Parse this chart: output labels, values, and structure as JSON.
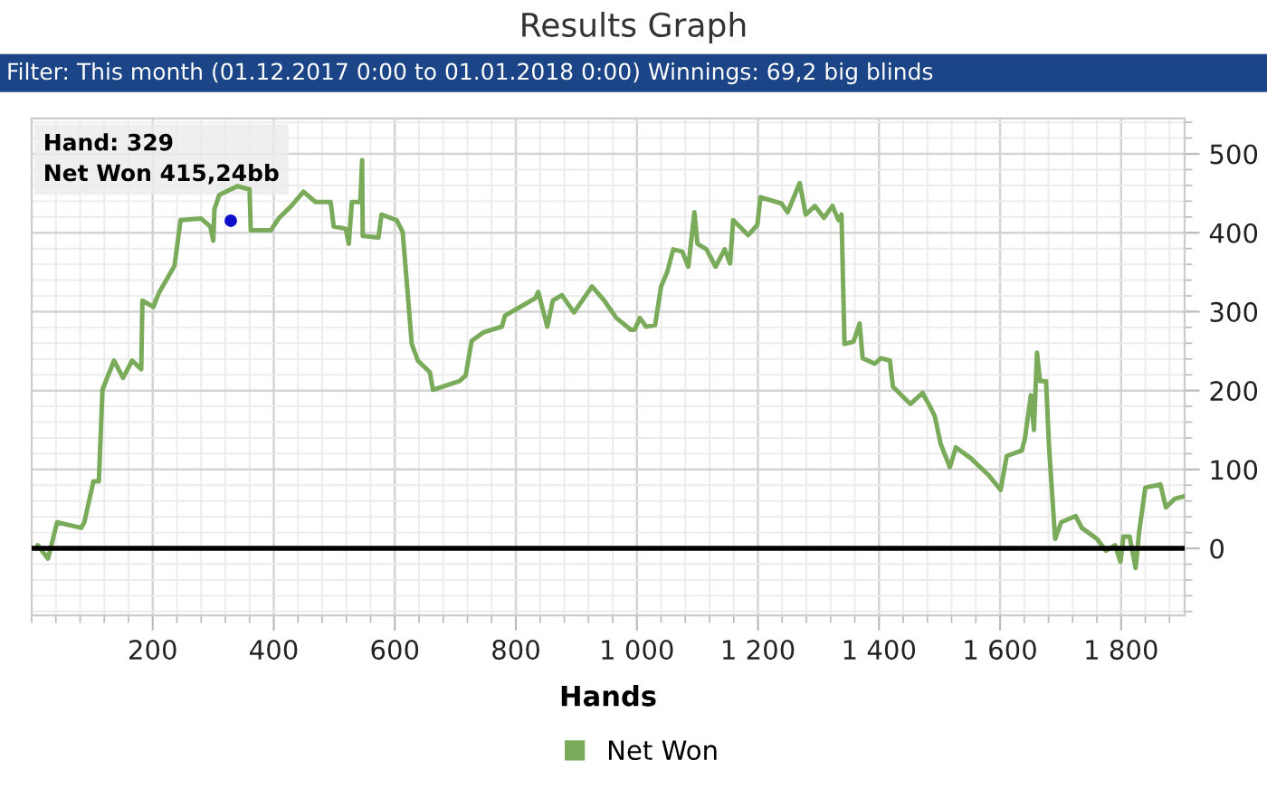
{
  "chart_data": {
    "type": "line",
    "title": "Results Graph",
    "subtitle": "Filter: This month (01.12.2017 0:00 to 01.01.2018 0:00) Winnings: 69,2 big blinds",
    "xlabel": "Hands",
    "series": [
      {
        "name": "Net Won",
        "color": "#7aab5a",
        "x": [
          7,
          10,
          27,
          42,
          82,
          87,
          102,
          111,
          117,
          136,
          151,
          166,
          181,
          183,
          201,
          211,
          236,
          246,
          280,
          295,
          300,
          302,
          310,
          340,
          360,
          362,
          395,
          409,
          429,
          449,
          469,
          494,
          499,
          519,
          524,
          529,
          543,
          546,
          547,
          573,
          578,
          603,
          613,
          618,
          628,
          638,
          658,
          663,
          707,
          717,
          727,
          747,
          777,
          782,
          807,
          832,
          837,
          852,
          861,
          876,
          896,
          926,
          946,
          966,
          990,
          996,
          1005,
          1015,
          1030,
          1040,
          1050,
          1060,
          1075,
          1085,
          1095,
          1100,
          1115,
          1130,
          1145,
          1154,
          1159,
          1184,
          1199,
          1204,
          1239,
          1249,
          1269,
          1279,
          1294,
          1309,
          1323,
          1333,
          1338,
          1343,
          1358,
          1368,
          1373,
          1393,
          1403,
          1418,
          1423,
          1437,
          1452,
          1472,
          1482,
          1492,
          1502,
          1517,
          1527,
          1552,
          1582,
          1601,
          1611,
          1636,
          1641,
          1651,
          1656,
          1661,
          1666,
          1676,
          1681,
          1691,
          1701,
          1725,
          1735,
          1760,
          1775,
          1790,
          1799,
          1804,
          1814,
          1824,
          1830,
          1840,
          1865,
          1874,
          1889,
          1904
        ],
        "values": [
          0,
          4,
          -13,
          33,
          26,
          33,
          85,
          85,
          201,
          238,
          216,
          238,
          227,
          314,
          306,
          325,
          358,
          416,
          418,
          408,
          390,
          430,
          448,
          459,
          455,
          403,
          403,
          419,
          434,
          452,
          439,
          439,
          408,
          405,
          386,
          439,
          439,
          492,
          396,
          394,
          423,
          416,
          401,
          354,
          259,
          238,
          223,
          201,
          212,
          219,
          263,
          274,
          281,
          295,
          306,
          317,
          325,
          281,
          314,
          321,
          299,
          332,
          314,
          292,
          277,
          277,
          292,
          281,
          283,
          332,
          350,
          379,
          376,
          357,
          426,
          386,
          379,
          357,
          379,
          361,
          416,
          397,
          410,
          445,
          437,
          426,
          463,
          423,
          434,
          419,
          434,
          416,
          423,
          259,
          262,
          285,
          241,
          234,
          241,
          238,
          205,
          194,
          183,
          197,
          183,
          168,
          132,
          103,
          128,
          114,
          92,
          74,
          117,
          124,
          139,
          194,
          150,
          248,
          212,
          212,
          128,
          12,
          33,
          41,
          26,
          12,
          -3,
          4,
          -17,
          15,
          15,
          -25,
          22,
          77,
          81,
          52,
          63,
          66
        ]
      }
    ],
    "xlim": [
      0,
      1905
    ],
    "xticks": [
      {
        "value": 200,
        "label": "200"
      },
      {
        "value": 400,
        "label": "400"
      },
      {
        "value": 600,
        "label": "600"
      },
      {
        "value": 800,
        "label": "800"
      },
      {
        "value": 1000,
        "label": "1 000"
      },
      {
        "value": 1200,
        "label": "1 200"
      },
      {
        "value": 1400,
        "label": "1 400"
      },
      {
        "value": 1600,
        "label": "1 600"
      },
      {
        "value": 1800,
        "label": "1 800"
      }
    ],
    "ylim": [
      -85,
      545
    ],
    "yticks": [
      0,
      100,
      200,
      300,
      400,
      500
    ],
    "ref_lines": [
      {
        "axis": "y",
        "value": 0,
        "color": "#000000"
      }
    ],
    "annotations": [
      {
        "text": "Hand: 329\nNet Won 415,24bb",
        "x": 329,
        "y": 415.24
      }
    ],
    "grid": true,
    "legend": "bottom",
    "marker": "none",
    "line_style": "solid"
  }
}
